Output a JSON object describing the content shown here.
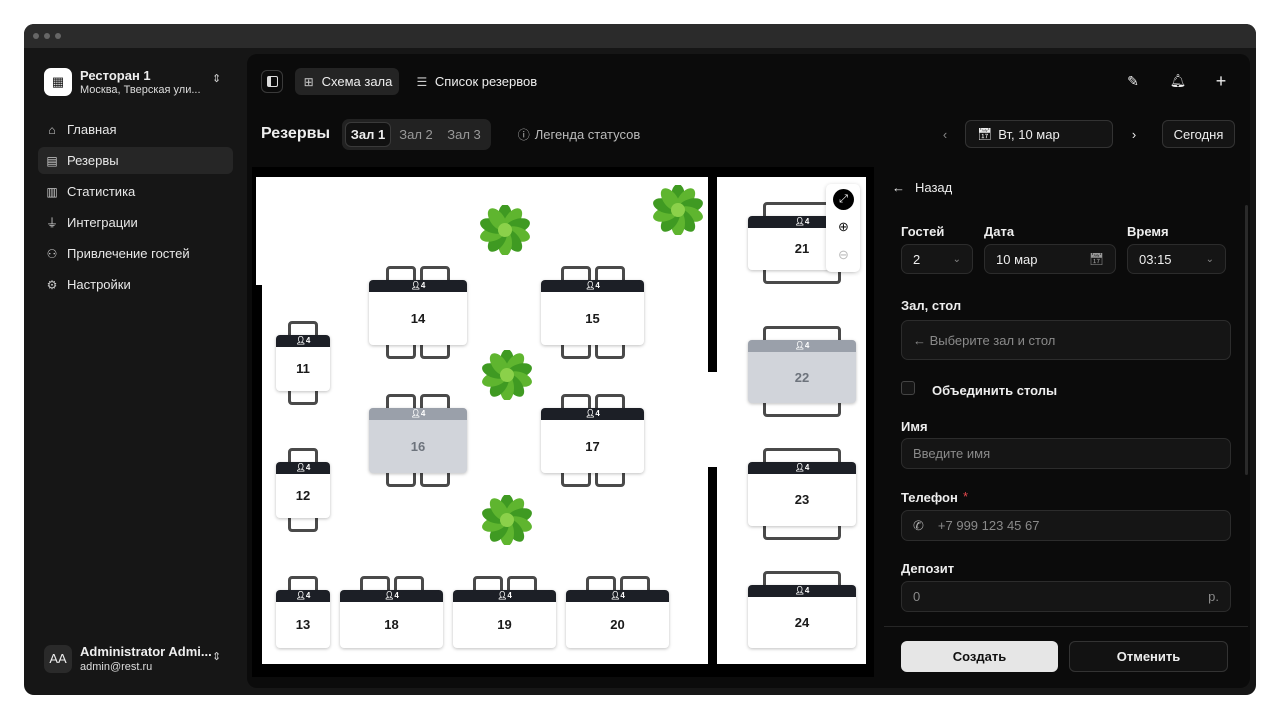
{
  "restaurant": {
    "name": "Ресторан 1",
    "address": "Москва, Тверская ули..."
  },
  "sidebar": {
    "items": [
      {
        "label": "Главная",
        "icon": "home-icon"
      },
      {
        "label": "Резервы",
        "icon": "calendar-icon",
        "active": true
      },
      {
        "label": "Статистика",
        "icon": "chart-icon"
      },
      {
        "label": "Интеграции",
        "icon": "plug-icon"
      },
      {
        "label": "Привлечение гостей",
        "icon": "user-plus-icon"
      },
      {
        "label": "Настройки",
        "icon": "gear-icon"
      }
    ]
  },
  "user": {
    "initials": "AA",
    "name": "Administrator Admi...",
    "email": "admin@rest.ru"
  },
  "toolbar": {
    "view_floor": "Схема зала",
    "view_list": "Список резервов"
  },
  "header": {
    "title": "Резервы",
    "halls": [
      "Зал 1",
      "Зал 2",
      "Зал 3"
    ],
    "active_hall": "Зал 1",
    "legend": "Легенда статусов",
    "date": "Вт, 10 мар",
    "today": "Сегодня"
  },
  "tables": [
    {
      "id": "11",
      "seats": "4",
      "status": "free"
    },
    {
      "id": "12",
      "seats": "4",
      "status": "free"
    },
    {
      "id": "13",
      "seats": "4",
      "status": "free"
    },
    {
      "id": "14",
      "seats": "4",
      "status": "free"
    },
    {
      "id": "15",
      "seats": "4",
      "status": "free"
    },
    {
      "id": "16",
      "seats": "4",
      "status": "occupied"
    },
    {
      "id": "17",
      "seats": "4",
      "status": "free"
    },
    {
      "id": "18",
      "seats": "4",
      "status": "free"
    },
    {
      "id": "19",
      "seats": "4",
      "status": "free"
    },
    {
      "id": "20",
      "seats": "4",
      "status": "free"
    },
    {
      "id": "21",
      "seats": "4",
      "status": "free"
    },
    {
      "id": "22",
      "seats": "4",
      "status": "occupied"
    },
    {
      "id": "23",
      "seats": "4",
      "status": "free"
    },
    {
      "id": "24",
      "seats": "4",
      "status": "free"
    }
  ],
  "form": {
    "back": "Назад",
    "guests_label": "Гостей",
    "guests": "2",
    "date_label": "Дата",
    "date": "10 мар",
    "time_label": "Время",
    "time": "03:15",
    "hall_label": "Зал, стол",
    "hall_placeholder": "← Выберите зал и стол",
    "merge": "Объединить столы",
    "name_label": "Имя",
    "name_placeholder": "Введите имя",
    "phone_label": "Телефон",
    "required": "*",
    "phone_placeholder": "+7 999 123 45 67",
    "deposit_label": "Депозит",
    "deposit": "0",
    "currency": "р.",
    "create": "Создать",
    "cancel": "Отменить"
  },
  "colors": {
    "free_header": "#1c1f26",
    "occupied": "#d1d4da",
    "required": "#e5484d"
  }
}
